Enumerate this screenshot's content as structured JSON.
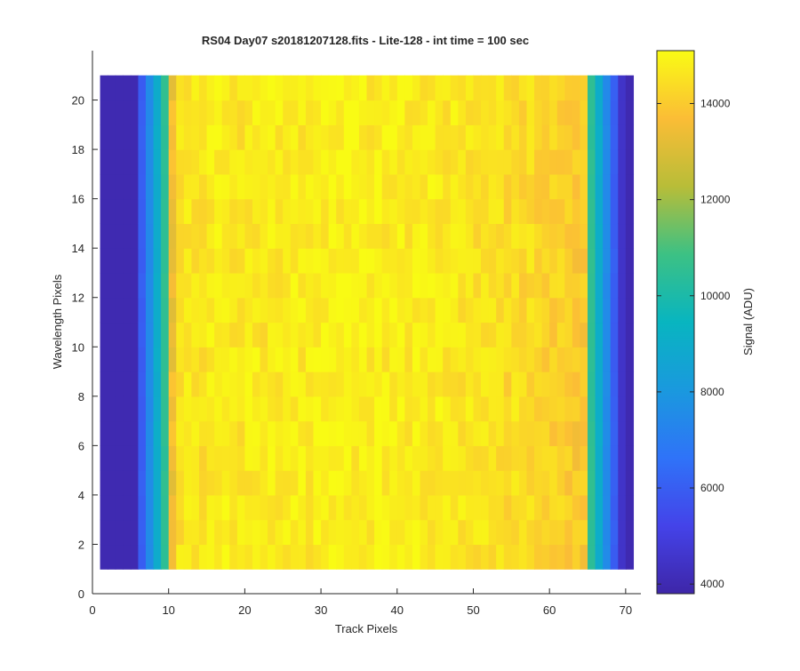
{
  "chart_data": {
    "type": "heatmap",
    "title": "RS04 Day07  s20181207128.fits - Lite-128 - int time = 100 sec",
    "xlabel": "Track Pixels",
    "ylabel": "Wavelength Pixels",
    "colorbar_label": "Signal (ADU)",
    "xlim": [
      0,
      72
    ],
    "ylim": [
      0,
      22
    ],
    "x_ticks": [
      0,
      10,
      20,
      30,
      40,
      50,
      60,
      70
    ],
    "y_ticks": [
      0,
      2,
      4,
      6,
      8,
      10,
      12,
      14,
      16,
      18,
      20
    ],
    "colorbar_ticks": [
      4000,
      6000,
      8000,
      10000,
      12000,
      14000
    ],
    "clim": [
      3800,
      15100
    ],
    "colormap": "parula",
    "grid": false,
    "x_range": [
      1,
      70
    ],
    "y_range": [
      1,
      20
    ],
    "cell_size": [
      1,
      1
    ],
    "column_profile": [
      4000,
      4000,
      4000,
      4000,
      4000,
      6000,
      7500,
      9000,
      10500,
      13500,
      14500,
      14600,
      14600,
      14500,
      14700,
      14700,
      14800,
      14600,
      14600,
      14700,
      14700,
      14600,
      14800,
      14700,
      14700,
      14800,
      14700,
      14700,
      14800,
      14800,
      14900,
      14800,
      14900,
      14800,
      14800,
      14700,
      14900,
      14700,
      14800,
      14800,
      14700,
      14800,
      14700,
      14700,
      14700,
      14600,
      14700,
      14600,
      14600,
      14500,
      14600,
      14500,
      14500,
      14300,
      14500,
      14300,
      14400,
      14200,
      14200,
      14100,
      14200,
      14000,
      13900,
      13900,
      10500,
      9000,
      7500,
      6000,
      4500,
      4000
    ],
    "row_variation_adu": 400
  }
}
